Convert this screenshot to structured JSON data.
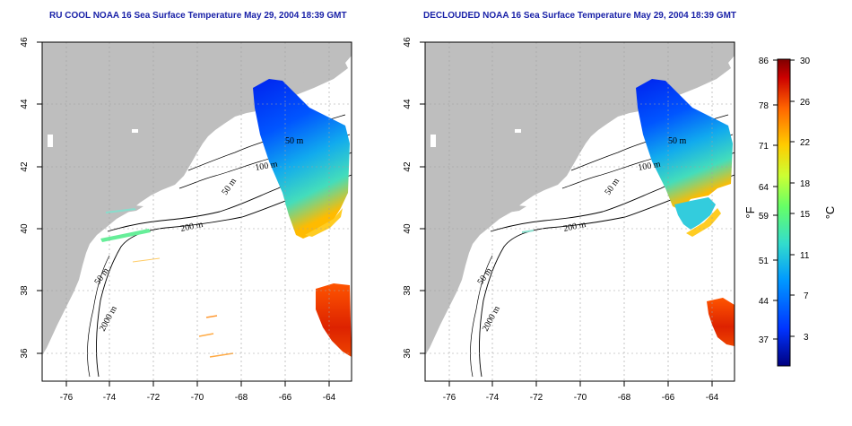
{
  "titles": {
    "left": "RU COOL NOAA 16 Sea Surface Temperature May 29, 2004 18:39 GMT",
    "right": "DECLOUDED NOAA 16 Sea Surface Temperature May 29, 2004 18:39 GMT"
  },
  "axes": {
    "lon_ticks": [
      "-76",
      "-74",
      "-72",
      "-70",
      "-68",
      "-66",
      "-64"
    ],
    "lat_ticks": [
      "36",
      "38",
      "40",
      "42",
      "44",
      "46"
    ]
  },
  "contour_labels": {
    "left": [
      "50 m",
      "100 m",
      "50 m",
      "200 m",
      "50 m",
      "2000 m"
    ],
    "right": [
      "50 m",
      "100 m",
      "50 m",
      "200 m",
      "50 m",
      "2000 m"
    ]
  },
  "colorbar": {
    "fahrenheit_ticks": [
      "86",
      "78",
      "71",
      "64",
      "59",
      "51",
      "44",
      "37"
    ],
    "celsius_ticks": [
      "30",
      "26",
      "22",
      "18",
      "15",
      "11",
      "7",
      "3"
    ],
    "fahrenheit_unit": "°F",
    "celsius_unit": "°C",
    "colors": [
      "#00007f",
      "#0033ff",
      "#0099ff",
      "#33ddcc",
      "#66ff66",
      "#ccff33",
      "#ffcc00",
      "#ff6600",
      "#cc0000",
      "#7f0000"
    ]
  },
  "colors": {
    "title": "#1a22a8",
    "land": "#bebebe",
    "ocean": "#ffffff",
    "grid": "#a0a0a0"
  }
}
